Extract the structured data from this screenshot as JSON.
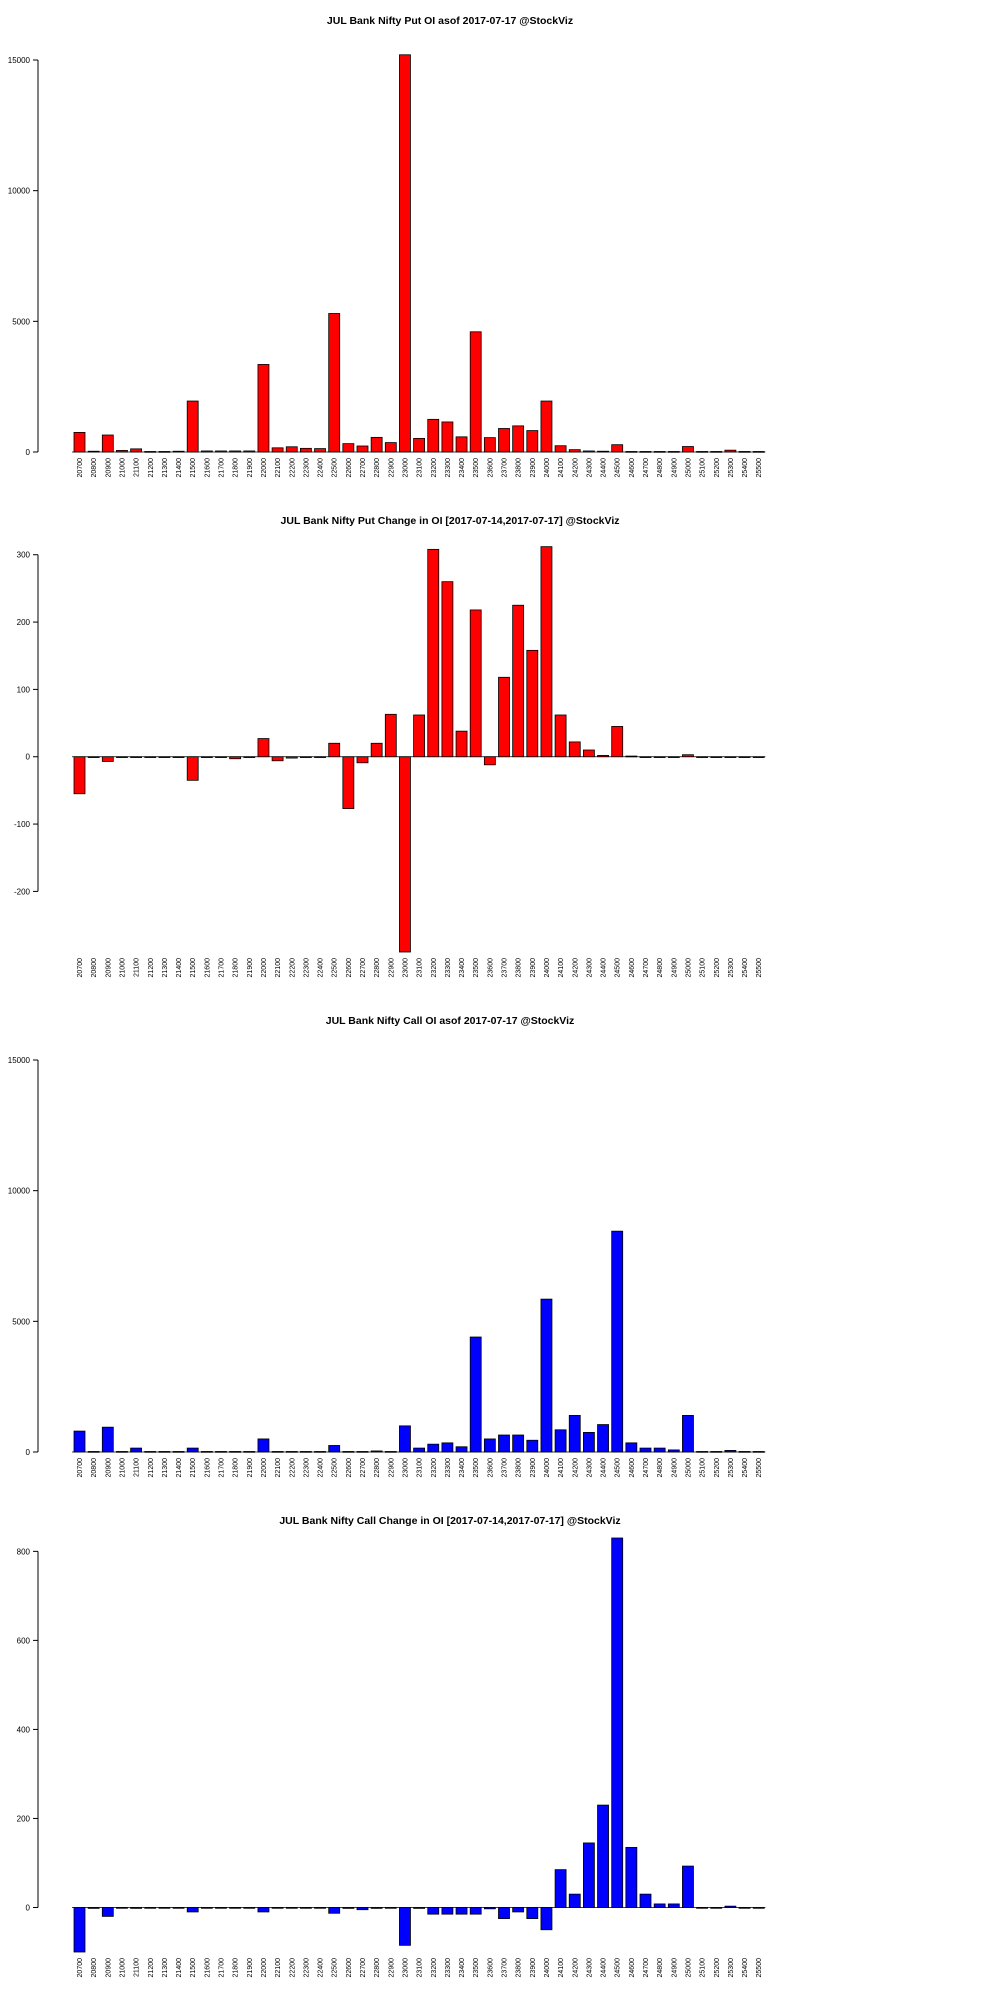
{
  "chart_data": [
    {
      "type": "bar",
      "title": "JUL Bank Nifty Put OI asof 2017-07-17 @StockViz",
      "xlabel": "",
      "ylabel": "",
      "color": "#ff0000",
      "ylim": [
        0,
        15000
      ],
      "yticks": [
        0,
        5000,
        10000,
        15000
      ],
      "categories": [
        "20700",
        "20800",
        "20900",
        "21000",
        "21100",
        "21200",
        "21300",
        "21400",
        "21500",
        "21600",
        "21700",
        "21800",
        "21900",
        "22000",
        "22100",
        "22200",
        "22300",
        "22400",
        "22500",
        "22600",
        "22700",
        "22800",
        "22900",
        "23000",
        "23100",
        "23200",
        "23300",
        "23400",
        "23500",
        "23600",
        "23700",
        "23800",
        "23900",
        "24000",
        "24100",
        "24200",
        "24300",
        "24400",
        "24500",
        "24600",
        "24700",
        "24800",
        "24900",
        "25000",
        "25100",
        "25200",
        "25300",
        "25400",
        "25500"
      ],
      "values": [
        750,
        30,
        650,
        60,
        120,
        20,
        20,
        30,
        1950,
        40,
        40,
        40,
        40,
        3350,
        160,
        200,
        140,
        130,
        5300,
        320,
        230,
        560,
        360,
        15200,
        520,
        1250,
        1150,
        580,
        4600,
        550,
        900,
        1000,
        820,
        1950,
        240,
        90,
        40,
        30,
        280,
        20,
        20,
        20,
        20,
        210,
        20,
        20,
        70,
        20,
        20
      ]
    },
    {
      "type": "bar",
      "title": "JUL Bank Nifty Put Change in OI [2017-07-14,2017-07-17] @StockViz",
      "xlabel": "",
      "ylabel": "",
      "color": "#ff0000",
      "ylim": [
        -290,
        310
      ],
      "yticks": [
        -200,
        -100,
        0,
        100,
        200,
        300
      ],
      "categories": [
        "20700",
        "20800",
        "20900",
        "21000",
        "21100",
        "21200",
        "21300",
        "21400",
        "21500",
        "21600",
        "21700",
        "21800",
        "21900",
        "22000",
        "22100",
        "22200",
        "22300",
        "22400",
        "22500",
        "22600",
        "22700",
        "22800",
        "22900",
        "23000",
        "23100",
        "23200",
        "23300",
        "23400",
        "23500",
        "23600",
        "23700",
        "23800",
        "23900",
        "24000",
        "24100",
        "24200",
        "24300",
        "24400",
        "24500",
        "24600",
        "24700",
        "24800",
        "24900",
        "25000",
        "25100",
        "25200",
        "25300",
        "25400",
        "25500"
      ],
      "values": [
        -55,
        -1,
        -7,
        -1,
        -1,
        -1,
        -1,
        -1,
        -35,
        -1,
        -1,
        -3,
        -1,
        27,
        -6,
        -2,
        -1,
        -1,
        20,
        -77,
        -9,
        20,
        63,
        -290,
        62,
        308,
        260,
        38,
        218,
        -12,
        118,
        225,
        158,
        312,
        62,
        22,
        10,
        2,
        45,
        1,
        -1,
        -1,
        -1,
        3,
        -1,
        -1,
        -1,
        -1,
        -1
      ]
    },
    {
      "type": "bar",
      "title": "JUL Bank Nifty Call OI asof 2017-07-17 @StockViz",
      "xlabel": "",
      "ylabel": "",
      "color": "#0000ff",
      "ylim": [
        0,
        15000
      ],
      "yticks": [
        0,
        5000,
        10000,
        15000
      ],
      "categories": [
        "20700",
        "20800",
        "20900",
        "21000",
        "21100",
        "21200",
        "21300",
        "21400",
        "21500",
        "21600",
        "21700",
        "21800",
        "21900",
        "22000",
        "22100",
        "22200",
        "22300",
        "22400",
        "22500",
        "22600",
        "22700",
        "22800",
        "22900",
        "23000",
        "23100",
        "23200",
        "23300",
        "23400",
        "23500",
        "23600",
        "23700",
        "23800",
        "23900",
        "24000",
        "24100",
        "24200",
        "24300",
        "24400",
        "24500",
        "24600",
        "24700",
        "24800",
        "24900",
        "25000",
        "25100",
        "25200",
        "25300",
        "25400",
        "25500"
      ],
      "values": [
        800,
        20,
        950,
        20,
        150,
        20,
        20,
        20,
        150,
        20,
        20,
        20,
        20,
        500,
        20,
        20,
        20,
        20,
        250,
        20,
        20,
        40,
        20,
        1000,
        150,
        300,
        350,
        200,
        4400,
        500,
        650,
        650,
        450,
        5850,
        850,
        1400,
        750,
        1050,
        8450,
        350,
        150,
        150,
        80,
        1400,
        20,
        20,
        60,
        20,
        20
      ]
    },
    {
      "type": "bar",
      "title": "JUL Bank Nifty Call Change in OI [2017-07-14,2017-07-17] @StockViz",
      "xlabel": "",
      "ylabel": "",
      "color": "#0000ff",
      "ylim": [
        -100,
        830
      ],
      "yticks": [
        0,
        200,
        400,
        600,
        800
      ],
      "categories": [
        "20700",
        "20800",
        "20900",
        "21000",
        "21100",
        "21200",
        "21300",
        "21400",
        "21500",
        "21600",
        "21700",
        "21800",
        "21900",
        "22000",
        "22100",
        "22200",
        "22300",
        "22400",
        "22500",
        "22600",
        "22700",
        "22800",
        "22900",
        "23000",
        "23100",
        "23200",
        "23300",
        "23400",
        "23500",
        "23600",
        "23700",
        "23800",
        "23900",
        "24000",
        "24100",
        "24200",
        "24300",
        "24400",
        "24500",
        "24600",
        "24700",
        "24800",
        "24900",
        "25000",
        "25100",
        "25200",
        "25300",
        "25400",
        "25500"
      ],
      "values": [
        -100,
        -2,
        -20,
        -1,
        -2,
        -1,
        -1,
        -1,
        -10,
        -1,
        -1,
        -1,
        -1,
        -10,
        -1,
        -1,
        -1,
        -1,
        -13,
        -2,
        -5,
        -2,
        -1,
        -85,
        -2,
        -15,
        -15,
        -15,
        -15,
        -3,
        -25,
        -10,
        -25,
        -50,
        85,
        30,
        145,
        230,
        830,
        135,
        30,
        8,
        8,
        93,
        -1,
        -1,
        3,
        -1,
        -1
      ]
    }
  ]
}
